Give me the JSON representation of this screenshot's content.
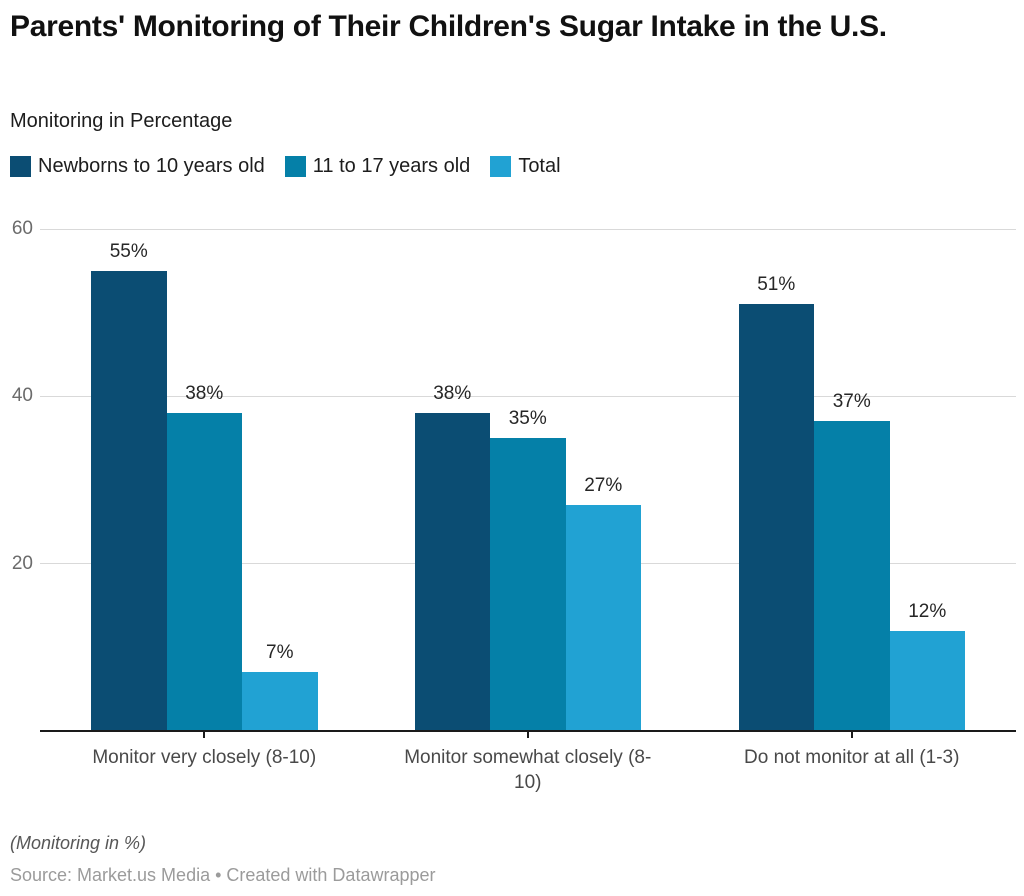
{
  "header": {
    "title": "Parents' Monitoring of Their Children's Sugar Intake in the U.S.",
    "subtitle": "Monitoring in Percentage"
  },
  "chart_data": {
    "type": "bar",
    "categories": [
      "Monitor very closely (8-10)",
      "Monitor somewhat closely (8-10)",
      "Do not monitor at all (1-3)"
    ],
    "series": [
      {
        "name": "Newborns to 10 years old",
        "color": "#0b4d73",
        "values": [
          55,
          38,
          51
        ]
      },
      {
        "name": "11 to 17 years old",
        "color": "#0580a8",
        "values": [
          38,
          35,
          37
        ]
      },
      {
        "name": "Total",
        "color": "#21a2d3",
        "values": [
          7,
          27,
          12
        ]
      }
    ],
    "value_suffix": "%",
    "y_axis": {
      "min": 0,
      "max": 60,
      "ticks": [
        20,
        40,
        60
      ]
    },
    "grid": true,
    "legend_position": "top"
  },
  "footer": {
    "note": "(Monitoring in %)",
    "source": "Source: Market.us Media • Created with Datawrapper"
  }
}
